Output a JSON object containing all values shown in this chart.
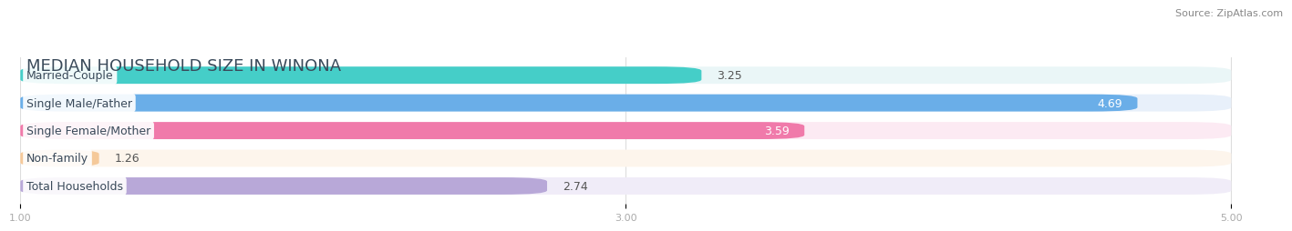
{
  "title": "MEDIAN HOUSEHOLD SIZE IN WINONA",
  "source": "Source: ZipAtlas.com",
  "categories": [
    "Married-Couple",
    "Single Male/Father",
    "Single Female/Mother",
    "Non-family",
    "Total Households"
  ],
  "values": [
    3.25,
    4.69,
    3.59,
    1.26,
    2.74
  ],
  "bar_colors": [
    "#45cec8",
    "#6aaee8",
    "#f07aaa",
    "#f5c99a",
    "#b8a8d8"
  ],
  "bar_bg_colors": [
    "#eaf6f7",
    "#e8f0fa",
    "#fceaf3",
    "#fdf5ec",
    "#f0ecf8"
  ],
  "value_inside": [
    false,
    true,
    true,
    false,
    false
  ],
  "xlim_min": 1.0,
  "xlim_max": 5.0,
  "xticks": [
    1.0,
    3.0,
    5.0
  ],
  "title_fontsize": 13,
  "source_fontsize": 8,
  "label_fontsize": 9,
  "value_fontsize": 9,
  "background_color": "#ffffff",
  "title_color": "#3a4a5a",
  "source_color": "#888888",
  "tick_color": "#aaaaaa",
  "grid_color": "#dddddd",
  "value_outside_color": "#555555",
  "value_inside_color": "#ffffff"
}
